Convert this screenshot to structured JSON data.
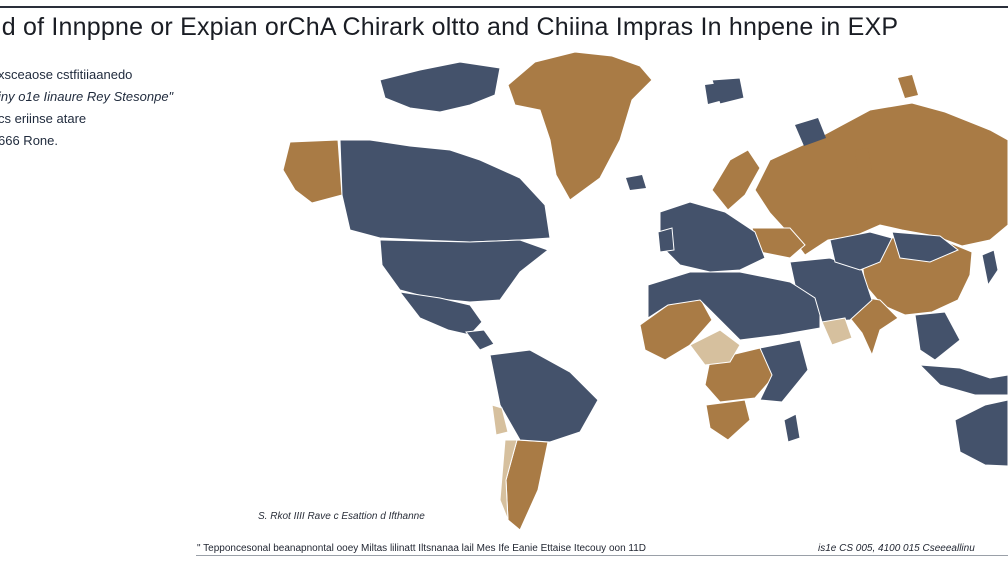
{
  "title": "ld of Innppne or Expian orChA Chirark oltto and Chiina Impras In hnpene in EXP",
  "legend": {
    "line1": "xsceaose cstfitiiaanedo",
    "line2": "iny o1e Iinaure Rey Stesonpe\"",
    "line3": "cs eriinse atare",
    "line4": "666 Rone."
  },
  "source": "S. Rkot IIII Rave c Esattion d Ifthanne",
  "footer": {
    "left": "\" Tepponcesonal beanapnontal ooey Miltas lilinatt Iltsnanaa lail Mes Ife Eanie Ettaise Itecouy oon 11D",
    "right": "is1e CS 005, 4100 015 Cseeeallinu"
  },
  "colors": {
    "exporter": "#a97b45",
    "importer": "#44526b",
    "light": "#d6c09e",
    "ocean": "#ffffff"
  }
}
